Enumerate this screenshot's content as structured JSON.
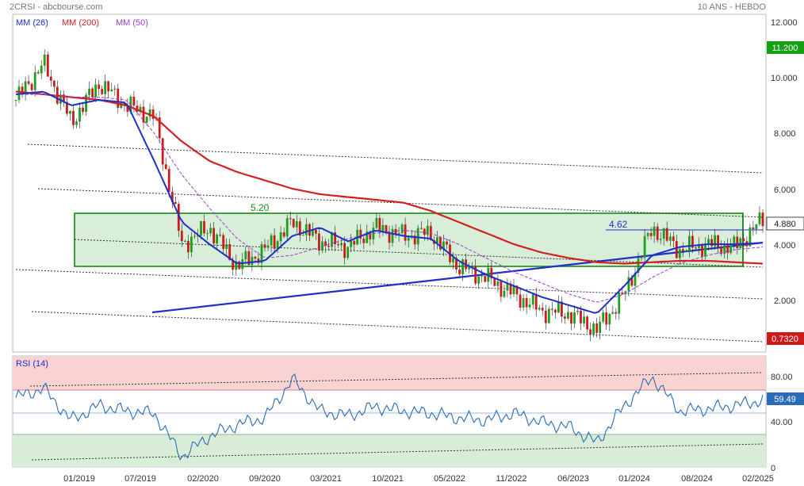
{
  "header": {
    "title": "2CRSI - abcbourse.com",
    "period": "10 ANS - HEBDO"
  },
  "legend": [
    {
      "label": "MM (26)",
      "color": "#1f2fc8"
    },
    {
      "label": "MM (200)",
      "color": "#d42020"
    },
    {
      "label": "MM (50)",
      "color": "#9b3fd1"
    }
  ],
  "colors": {
    "candle_up": "#1e9e1e",
    "candle_down": "#cc1b1b",
    "box_fill": "#d4ecd4",
    "box_stroke": "#138a13",
    "trendline": "#1f2fc8",
    "ma26": "#1f2fc8",
    "ma200": "#d42020",
    "ma50": "#9b3fd1",
    "rsi_line": "#2b6cb8",
    "rsi_overbought_fill": "#f9d2d2",
    "rsi_oversold_fill": "#d8ecd8",
    "price_badge": "#ffffff",
    "high_badge": "#16a016",
    "low_badge": "#cc1b1b"
  },
  "price_axis": {
    "ticks": [
      "12.000",
      "10.000",
      "8.000",
      "6.000",
      "4.000",
      "2.000"
    ],
    "high_badge": "11.200",
    "last_badge": "4.880",
    "low_badge": "0.7320"
  },
  "rsi_axis": {
    "ticks": [
      "80.00",
      "40.00",
      "0"
    ],
    "last_badge": "59.49"
  },
  "rsi_label": "RSI (14)",
  "annotations": {
    "resistance_label": "5.20",
    "level_label": "4.62"
  },
  "x_axis": [
    "01/2019",
    "07/2019",
    "02/2020",
    "09/2020",
    "03/2021",
    "10/2021",
    "05/2022",
    "11/2022",
    "06/2023",
    "01/2024",
    "08/2024",
    "02/2025"
  ],
  "chart_data": {
    "type": "line",
    "title": "2CRSI",
    "x": [
      "2018-07",
      "2018-10",
      "2019-01",
      "2019-04",
      "2019-07",
      "2019-10",
      "2020-01",
      "2020-04",
      "2020-07",
      "2020-10",
      "2021-01",
      "2021-04",
      "2021-07",
      "2021-10",
      "2022-01",
      "2022-04",
      "2022-07",
      "2022-10",
      "2023-01",
      "2023-04",
      "2023-07",
      "2023-10",
      "2024-01",
      "2024-04",
      "2024-07",
      "2024-10",
      "2025-01",
      "2025-02"
    ],
    "series": [
      {
        "name": "Price",
        "values": [
          9.2,
          10.5,
          8.4,
          9.8,
          9.0,
          8.6,
          4.0,
          4.6,
          3.2,
          3.8,
          4.8,
          4.1,
          3.9,
          4.6,
          4.3,
          4.4,
          3.2,
          2.8,
          2.2,
          1.6,
          1.5,
          0.9,
          2.2,
          4.6,
          3.8,
          4.0,
          3.9,
          4.88
        ]
      },
      {
        "name": "MM (26)",
        "values": [
          9.4,
          9.5,
          9.0,
          9.2,
          9.1,
          7.0,
          4.8,
          4.0,
          3.3,
          3.4,
          4.3,
          4.6,
          4.1,
          4.5,
          4.3,
          4.2,
          3.4,
          2.9,
          2.5,
          2.1,
          1.8,
          1.5,
          2.5,
          3.6,
          3.9,
          4.0,
          4.0,
          4.05
        ]
      },
      {
        "name": "MM (200)",
        "values": [
          9.5,
          9.4,
          9.3,
          9.2,
          9.0,
          8.6,
          7.7,
          7.0,
          6.6,
          6.3,
          6.0,
          5.8,
          5.7,
          5.6,
          5.5,
          5.2,
          4.8,
          4.4,
          4.0,
          3.7,
          3.5,
          3.35,
          3.3,
          3.35,
          3.4,
          3.4,
          3.35,
          3.3
        ]
      },
      {
        "name": "MM (50)",
        "values": [
          9.4,
          9.4,
          9.3,
          9.3,
          9.2,
          8.0,
          6.5,
          5.3,
          4.2,
          3.5,
          3.6,
          3.9,
          4.2,
          4.4,
          4.5,
          4.4,
          4.0,
          3.5,
          3.0,
          2.6,
          2.2,
          1.9,
          2.2,
          2.8,
          3.3,
          3.6,
          3.8,
          3.9
        ]
      },
      {
        "name": "RSI (14)",
        "values": [
          62,
          70,
          42,
          55,
          50,
          48,
          10,
          28,
          38,
          44,
          78,
          50,
          46,
          54,
          50,
          48,
          44,
          42,
          48,
          40,
          36,
          22,
          55,
          80,
          50,
          52,
          55,
          59.49
        ]
      }
    ],
    "ylim": [
      0.5,
      12.2
    ],
    "rsi_ylim": [
      0,
      100
    ]
  }
}
